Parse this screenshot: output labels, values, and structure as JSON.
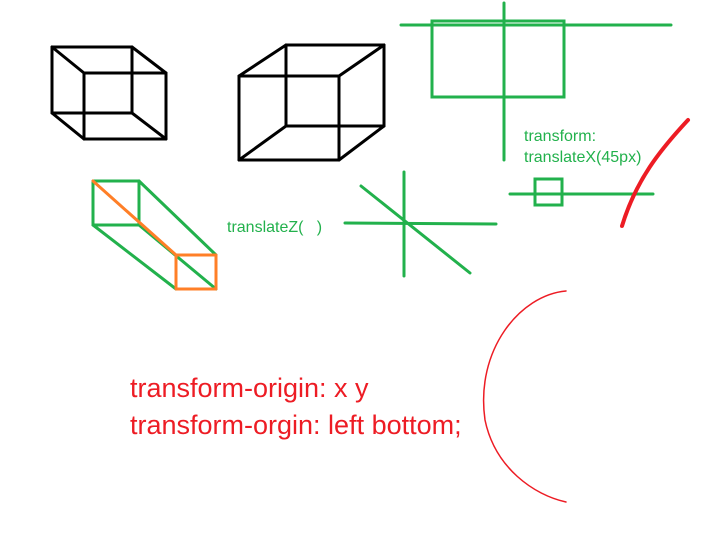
{
  "labels": {
    "transform_label": "transform:",
    "translate_x_label": "translateX(45px)",
    "translate_z_label": "translateZ(   )",
    "origin_line_1": "transform-origin: x y",
    "origin_line_2": "transform-orgin: left bottom;"
  },
  "colors": {
    "black": "#000000",
    "green": "#22b14c",
    "orange": "#ff7f27",
    "red": "#ed1c24"
  }
}
